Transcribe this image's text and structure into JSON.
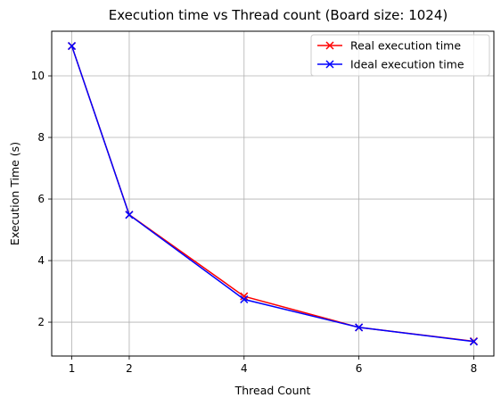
{
  "chart_data": {
    "type": "line",
    "title": "Execution time vs Thread count (Board size: 1024)",
    "xlabel": "Thread Count",
    "ylabel": "Execution Time (s)",
    "xlim": [
      0.65,
      8.35
    ],
    "ylim": [
      0.9,
      11.45
    ],
    "xticks": [
      1,
      2,
      4,
      6,
      8
    ],
    "yticks": [
      2,
      4,
      6,
      8,
      10
    ],
    "grid": true,
    "legend_position": "top-right",
    "x": [
      1,
      2,
      4,
      6,
      8
    ],
    "series": [
      {
        "name": "Real execution time",
        "color": "#ff0000",
        "marker": "x",
        "values": [
          10.97,
          5.49,
          2.84,
          1.83,
          1.38
        ]
      },
      {
        "name": "Ideal execution time",
        "color": "#0000ff",
        "marker": "x",
        "values": [
          10.97,
          5.485,
          2.74,
          1.83,
          1.37
        ]
      }
    ]
  }
}
